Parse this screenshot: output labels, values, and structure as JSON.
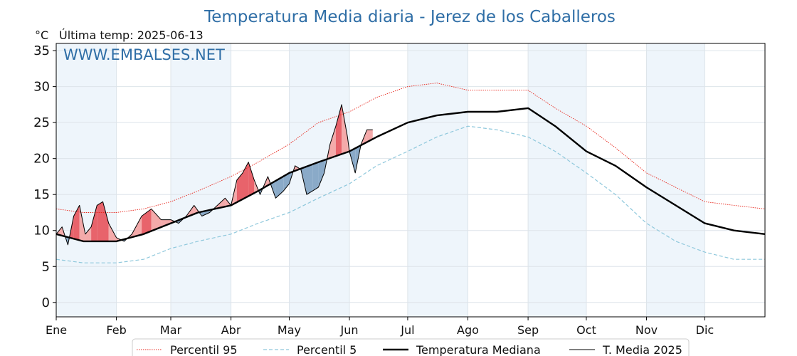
{
  "chart_data": {
    "type": "line",
    "title": "Temperatura Media diaria - Jerez de los Caballeros",
    "unit_label": "°C",
    "last_temp_label": "Última temp: 2025-06-13",
    "watermark": "WWW.EMBALSES.NET",
    "xlabel": "",
    "ylabel": "",
    "xlim": [
      1,
      366
    ],
    "ylim": [
      -2,
      36
    ],
    "y_ticks": [
      0,
      5,
      10,
      15,
      20,
      25,
      30,
      35
    ],
    "x_ticks": [
      {
        "label": "Ene",
        "day": 1
      },
      {
        "label": "Feb",
        "day": 32
      },
      {
        "label": "Mar",
        "day": 60
      },
      {
        "label": "Abr",
        "day": 91
      },
      {
        "label": "May",
        "day": 121
      },
      {
        "label": "Jun",
        "day": 152
      },
      {
        "label": "Jul",
        "day": 182
      },
      {
        "label": "Ago",
        "day": 213
      },
      {
        "label": "Sep",
        "day": 244
      },
      {
        "label": "Oct",
        "day": 274
      },
      {
        "label": "Nov",
        "day": 305
      },
      {
        "label": "Dic",
        "day": 335
      }
    ],
    "shaded_month_bands": [
      [
        1,
        32
      ],
      [
        60,
        91
      ],
      [
        121,
        152
      ],
      [
        182,
        213
      ],
      [
        244,
        274
      ],
      [
        305,
        335
      ]
    ],
    "grid": true,
    "legend_position": "bottom",
    "colors": {
      "p95": "#e8261c",
      "p5": "#8fc8dc",
      "median": "#000000",
      "current": "#000000",
      "above_fill": "#f4aaaa",
      "above_fill_strong": "#e8636b",
      "below_fill": "#8aaac8",
      "band": "#eef5fb",
      "title": "#2f6ea6"
    },
    "series": [
      {
        "name": "Percentil 95",
        "style": "dotted",
        "x": [
          1,
          15,
          32,
          46,
          60,
          74,
          91,
          105,
          121,
          136,
          152,
          166,
          182,
          197,
          213,
          228,
          244,
          258,
          274,
          289,
          305,
          320,
          335,
          350,
          366
        ],
        "y": [
          13,
          12.5,
          12.5,
          13,
          14,
          15.5,
          17.5,
          19.5,
          22,
          25,
          26.5,
          28.5,
          30,
          30.5,
          29.5,
          29.5,
          29.5,
          27,
          24.5,
          21.5,
          18,
          16,
          14,
          13.5,
          13
        ]
      },
      {
        "name": "Percentil 5",
        "style": "dashed",
        "x": [
          1,
          15,
          32,
          46,
          60,
          74,
          91,
          105,
          121,
          136,
          152,
          166,
          182,
          197,
          213,
          228,
          244,
          258,
          274,
          289,
          305,
          320,
          335,
          350,
          366
        ],
        "y": [
          6,
          5.5,
          5.5,
          6,
          7.5,
          8.5,
          9.5,
          11,
          12.5,
          14.5,
          16.5,
          19,
          21,
          23,
          24.5,
          24,
          23,
          21,
          18,
          15,
          11,
          8.5,
          7,
          6,
          6
        ]
      },
      {
        "name": "Temperatura Mediana",
        "style": "solid-thick",
        "x": [
          1,
          15,
          32,
          46,
          60,
          74,
          91,
          105,
          121,
          136,
          152,
          166,
          182,
          197,
          213,
          228,
          244,
          258,
          274,
          289,
          305,
          320,
          335,
          350,
          366
        ],
        "y": [
          9.5,
          8.5,
          8.5,
          9.5,
          11,
          12.5,
          13.5,
          15.5,
          18,
          19.5,
          21,
          23,
          25,
          26,
          26.5,
          26.5,
          27,
          24.5,
          21,
          19,
          16,
          13.5,
          11,
          10,
          9.5
        ]
      },
      {
        "name": "T. Media 2025",
        "style": "solid-thin",
        "x": [
          1,
          4,
          7,
          10,
          13,
          16,
          19,
          22,
          25,
          28,
          32,
          36,
          40,
          45,
          50,
          55,
          60,
          64,
          68,
          72,
          76,
          80,
          84,
          88,
          91,
          94,
          97,
          100,
          103,
          106,
          110,
          114,
          118,
          121,
          124,
          127,
          130,
          133,
          136,
          139,
          142,
          145,
          148,
          151,
          152,
          155,
          158,
          161,
          164
        ],
        "y": [
          9.5,
          10.5,
          8,
          12,
          13.5,
          9.5,
          10.5,
          13.5,
          14,
          11,
          9,
          8.5,
          9.5,
          12,
          13,
          11.5,
          11.5,
          11,
          12,
          13.5,
          12,
          12.5,
          13.5,
          14.5,
          13.5,
          17,
          18,
          19.5,
          17,
          15,
          17.5,
          14.5,
          15.5,
          16.5,
          19,
          18.5,
          15,
          15.5,
          16,
          18,
          22,
          24.5,
          27.5,
          23,
          21,
          18,
          22,
          24,
          24
        ]
      }
    ]
  }
}
